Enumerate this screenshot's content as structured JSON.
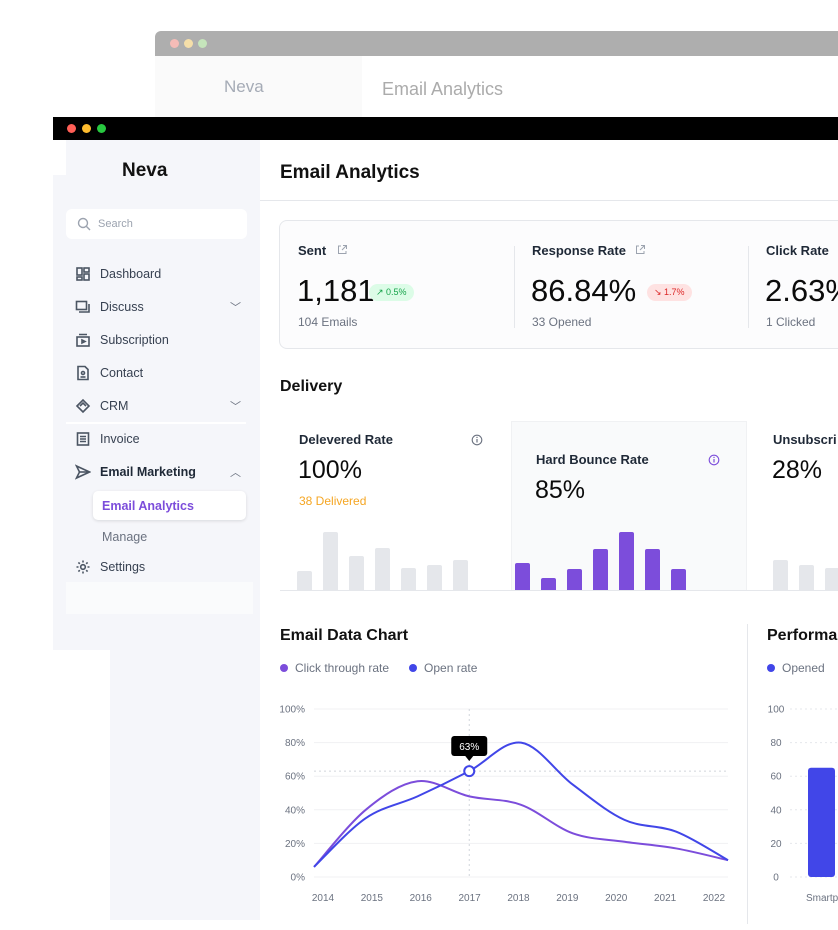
{
  "back_window": {
    "brand": "Neva",
    "title": "Email Analytics"
  },
  "brand": "Neva",
  "search": {
    "placeholder": "Search"
  },
  "nav": [
    {
      "label": "Dashboard",
      "icon": "dashboard-icon"
    },
    {
      "label": "Discuss",
      "icon": "chat-icon",
      "expand": "chevron-down"
    },
    {
      "label": "Subscription",
      "icon": "subscription-icon"
    },
    {
      "label": "Contact",
      "icon": "contact-icon"
    },
    {
      "label": "CRM",
      "icon": "handshake-icon",
      "expand": "chevron-down"
    },
    {
      "label": "Invoice",
      "icon": "invoice-icon"
    },
    {
      "label": "Email Marketing",
      "icon": "send-icon",
      "expand": "chevron-up"
    },
    {
      "label": "Settings",
      "icon": "gear-icon"
    }
  ],
  "subnav": [
    {
      "label": "Email Analytics",
      "active": true
    },
    {
      "label": "Manage"
    }
  ],
  "page_title": "Email Analytics",
  "stats": [
    {
      "label": "Sent",
      "value": "1,181",
      "change": "↗ 0.5%",
      "trend": "up",
      "sub": "104 Emails"
    },
    {
      "label": "Response Rate",
      "value": "86.84%",
      "change": "↘ 1.7%",
      "trend": "down",
      "sub": "33 Opened"
    },
    {
      "label": "Click Rate",
      "value": "2.63%",
      "sub": "1 Clicked"
    }
  ],
  "delivery": {
    "title": "Delivery",
    "cards": [
      {
        "label": "Delevered Rate",
        "value": "100%",
        "sub": "38 Delivered",
        "bars": [
          19,
          58,
          34,
          42,
          22,
          25,
          30
        ]
      },
      {
        "label": "Hard Bounce Rate",
        "value": "85%",
        "bars": [
          27,
          12,
          21,
          41,
          58,
          41,
          21
        ]
      },
      {
        "label": "Unsubscri",
        "value": "28%",
        "bars": [
          30,
          25,
          22
        ]
      }
    ]
  },
  "colors": {
    "accent": "#7c4ddb",
    "blue": "#4146e8",
    "orange": "#f5a623",
    "up_bg": "#dcfce7",
    "up_fg": "#16a34a",
    "down_bg": "#fee2e2",
    "down_fg": "#dc2626"
  },
  "chart_data": [
    {
      "type": "line",
      "title": "Email Data Chart",
      "categories": [
        "2014",
        "2015",
        "2016",
        "2017",
        "2018",
        "2019",
        "2020",
        "2021",
        "2022"
      ],
      "series": [
        {
          "name": "Click through rate",
          "values": [
            6,
            40,
            57,
            48,
            43,
            26,
            21,
            17,
            10
          ]
        },
        {
          "name": "Open rate",
          "values": [
            6,
            35,
            48,
            63,
            80,
            55,
            34,
            27,
            10
          ]
        }
      ],
      "ylim": [
        0,
        100
      ],
      "yticks": [
        "0%",
        "20%",
        "40%",
        "60%",
        "80%",
        "100%"
      ],
      "tooltip": "63%",
      "legend": "top-left"
    },
    {
      "type": "bar",
      "title": "Performa",
      "series": [
        {
          "name": "Opened",
          "values": [
            65
          ]
        }
      ],
      "categories": [
        "Smartp"
      ],
      "yticks": [
        "0",
        "20",
        "40",
        "60",
        "80",
        "100"
      ],
      "ylim": [
        0,
        100
      ]
    }
  ]
}
